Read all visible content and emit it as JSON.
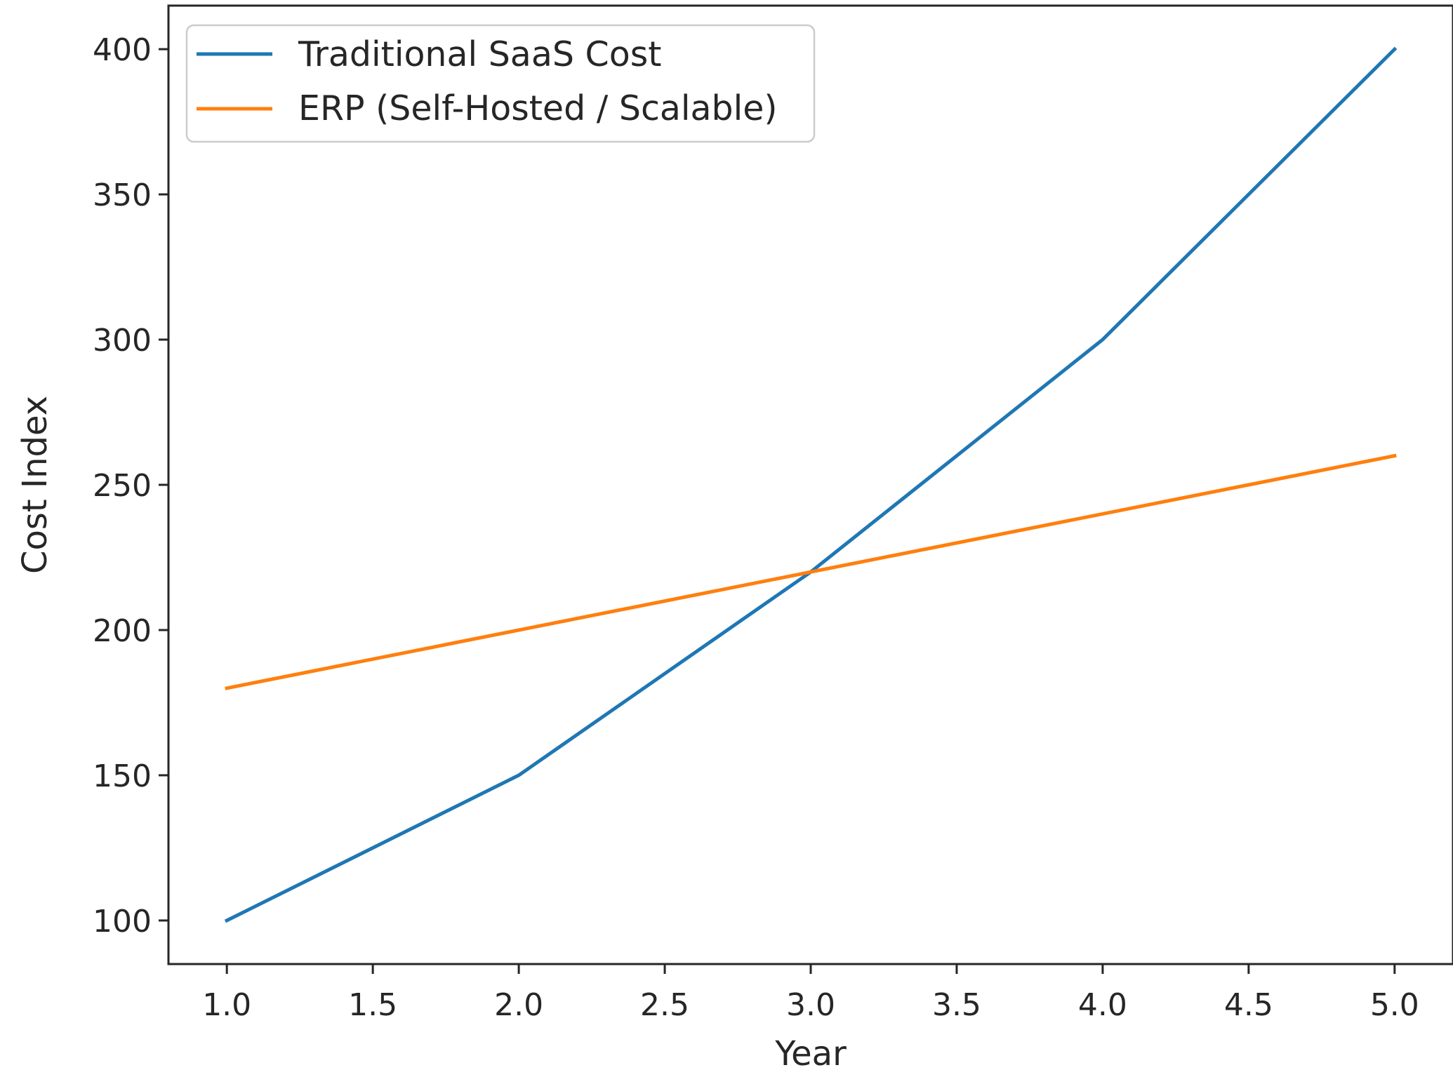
{
  "chart_data": {
    "type": "line",
    "title": "",
    "xlabel": "Year",
    "ylabel": "Cost Index",
    "xlim": [
      0.8,
      5.2
    ],
    "ylim": [
      85,
      415
    ],
    "x_ticks": [
      1.0,
      1.5,
      2.0,
      2.5,
      3.0,
      3.5,
      4.0,
      4.5,
      5.0
    ],
    "x_tick_labels": [
      "1.0",
      "1.5",
      "2.0",
      "2.5",
      "3.0",
      "3.5",
      "4.0",
      "4.5",
      "5.0"
    ],
    "y_ticks": [
      100,
      150,
      200,
      250,
      300,
      350,
      400
    ],
    "y_tick_labels": [
      "100",
      "150",
      "200",
      "250",
      "300",
      "350",
      "400"
    ],
    "grid": false,
    "legend_position": "top-left",
    "x": [
      1,
      2,
      3,
      4,
      5
    ],
    "series": [
      {
        "name": "Traditional SaaS Cost",
        "color": "#1f77b4",
        "values": [
          100,
          150,
          220,
          300,
          400
        ]
      },
      {
        "name": "ERP (Self-Hosted / Scalable)",
        "color": "#ff7f0e",
        "values": [
          180,
          200,
          220,
          240,
          260
        ]
      }
    ]
  }
}
